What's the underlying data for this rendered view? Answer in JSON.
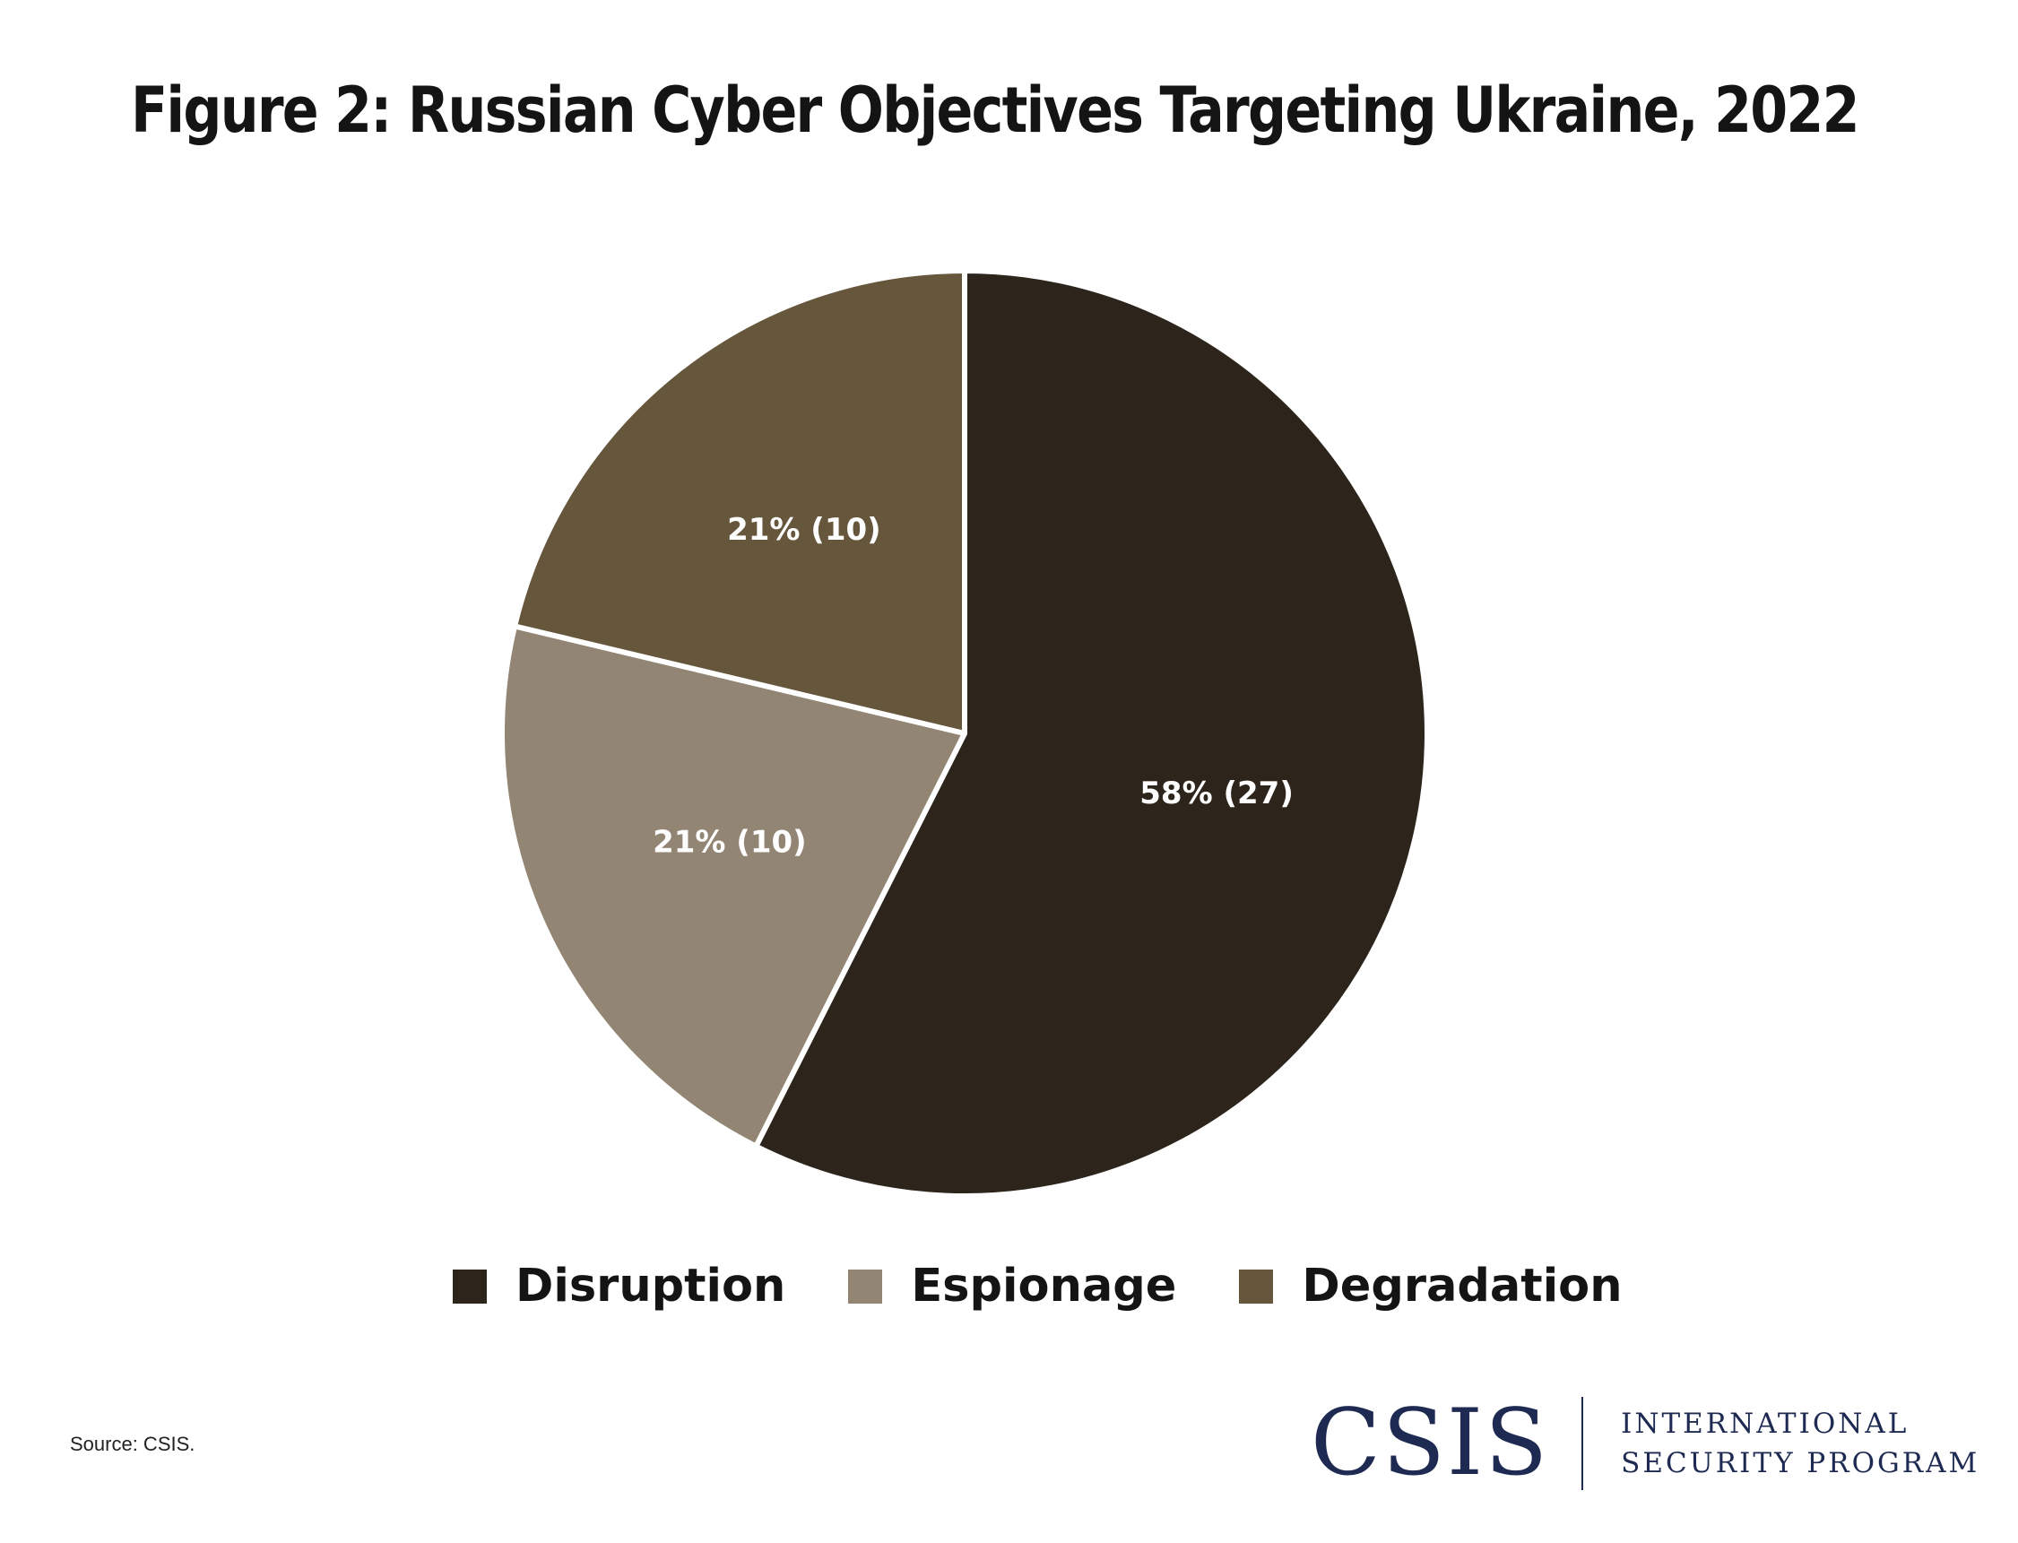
{
  "chart_data": {
    "type": "pie",
    "title": "Figure 2: Russian Cyber Objectives Targeting Ukraine, 2022",
    "slices": [
      {
        "name": "Disruption",
        "value": 27,
        "percent": 58,
        "label": "58% (27)",
        "color": "#2d251b"
      },
      {
        "name": "Espionage",
        "value": 10,
        "percent": 21,
        "label": "21% (10)",
        "color": "#928574"
      },
      {
        "name": "Degradation",
        "value": 10,
        "percent": 21,
        "label": "21% (10)",
        "color": "#65563c"
      }
    ],
    "legend_position": "bottom"
  },
  "source": "Source: CSIS.",
  "logo": {
    "mark": "CSIS",
    "line1": "INTERNATIONAL",
    "line2": "SECURITY PROGRAM",
    "color": "#1e2a52"
  }
}
